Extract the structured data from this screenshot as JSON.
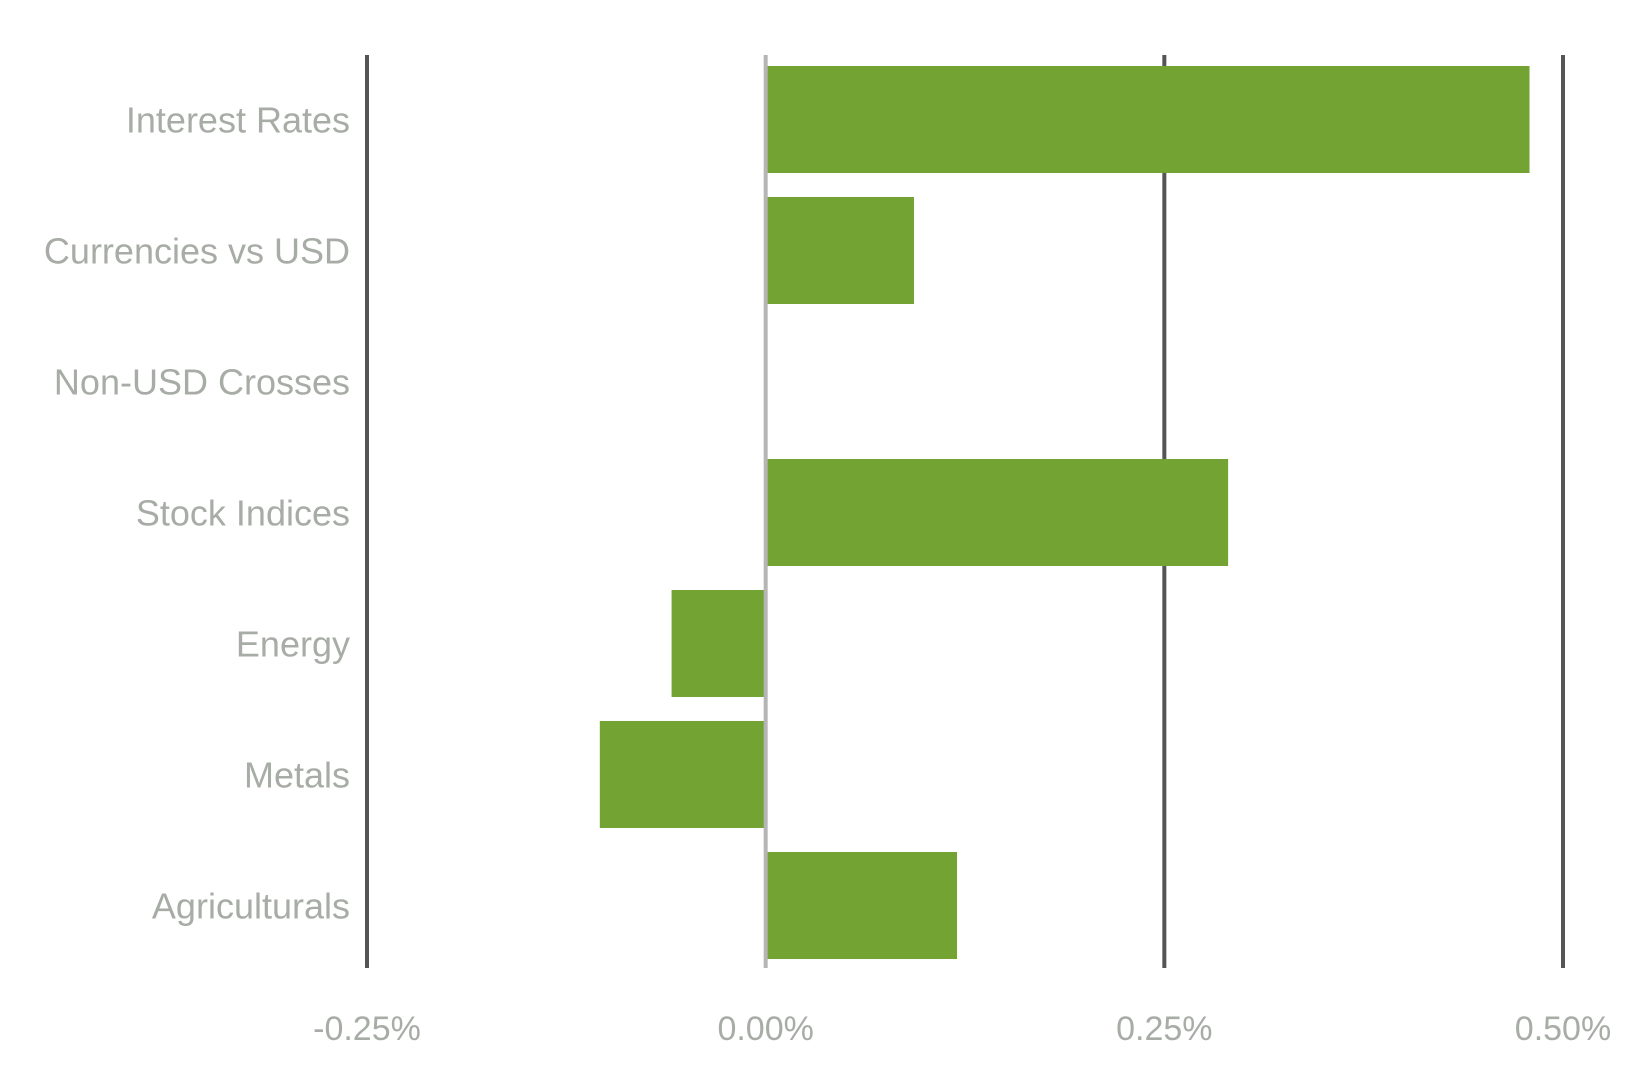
{
  "chart_data": {
    "type": "bar",
    "orientation": "horizontal",
    "categories": [
      "Interest Rates",
      "Currencies vs USD",
      "Non-USD Crosses",
      "Stock Indices",
      "Energy",
      "Metals",
      "Agriculturals"
    ],
    "values": [
      0.479,
      0.093,
      0.0,
      0.29,
      -0.059,
      -0.104,
      0.12
    ],
    "value_unit": "%",
    "xlim": [
      -0.25,
      0.5
    ],
    "xticks": [
      -0.25,
      0.0,
      0.25,
      0.5
    ],
    "xtick_labels": [
      "-0.25%",
      "0.00%",
      "0.25%",
      "0.50%"
    ],
    "title": "",
    "xlabel": "",
    "ylabel": "",
    "grid": true,
    "legend": "none",
    "colors": {
      "bar": "#73a433",
      "gridline": "#555555",
      "zero_line": "#b5b5b5",
      "label_text": "#a8aca6"
    }
  }
}
